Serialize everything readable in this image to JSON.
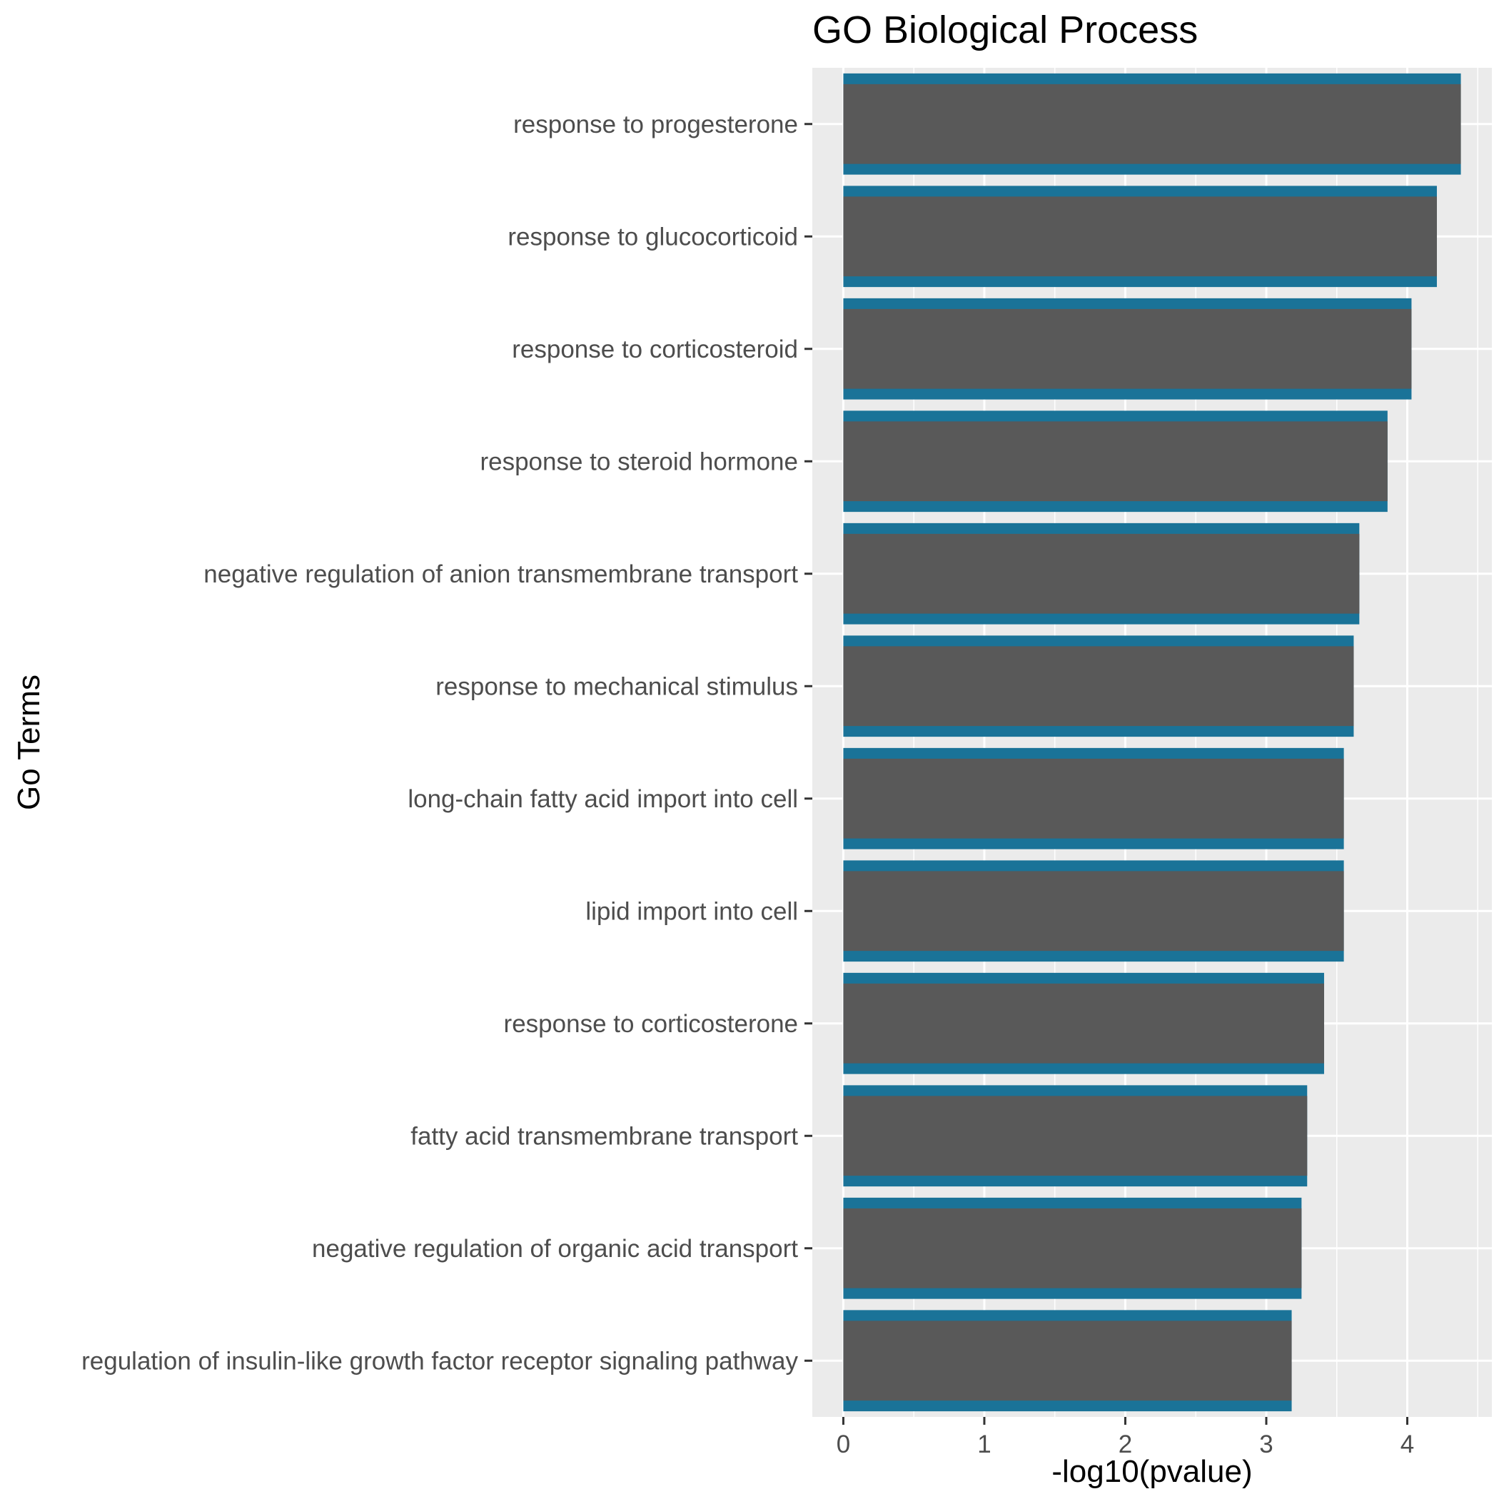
{
  "chart_data": {
    "type": "bar",
    "orientation": "horizontal",
    "title": "GO Biological Process",
    "xlabel": "-log10(pvalue)",
    "ylabel": "Go Terms",
    "xlim": [
      -0.22,
      4.6
    ],
    "xticks": [
      0,
      1,
      2,
      3,
      4
    ],
    "grid": true,
    "categories": [
      "response to progesterone",
      "response to glucocorticoid",
      "response to corticosteroid",
      "response to steroid hormone",
      "negative regulation of anion transmembrane transport",
      "response to mechanical stimulus",
      "long-chain fatty acid import into cell",
      "lipid import into cell",
      "response to corticosterone",
      "fatty acid transmembrane transport",
      "negative regulation of organic acid transport",
      "regulation of insulin-like growth factor receptor signaling pathway"
    ],
    "values": [
      4.38,
      4.21,
      4.03,
      3.86,
      3.66,
      3.62,
      3.55,
      3.55,
      3.41,
      3.29,
      3.25,
      3.18
    ],
    "colors": {
      "bar_fill": "#595959",
      "bar_outline": "#1a7398",
      "panel": "#ebebeb",
      "grid": "#ffffff",
      "tick_text": "#4d4d4d"
    }
  }
}
